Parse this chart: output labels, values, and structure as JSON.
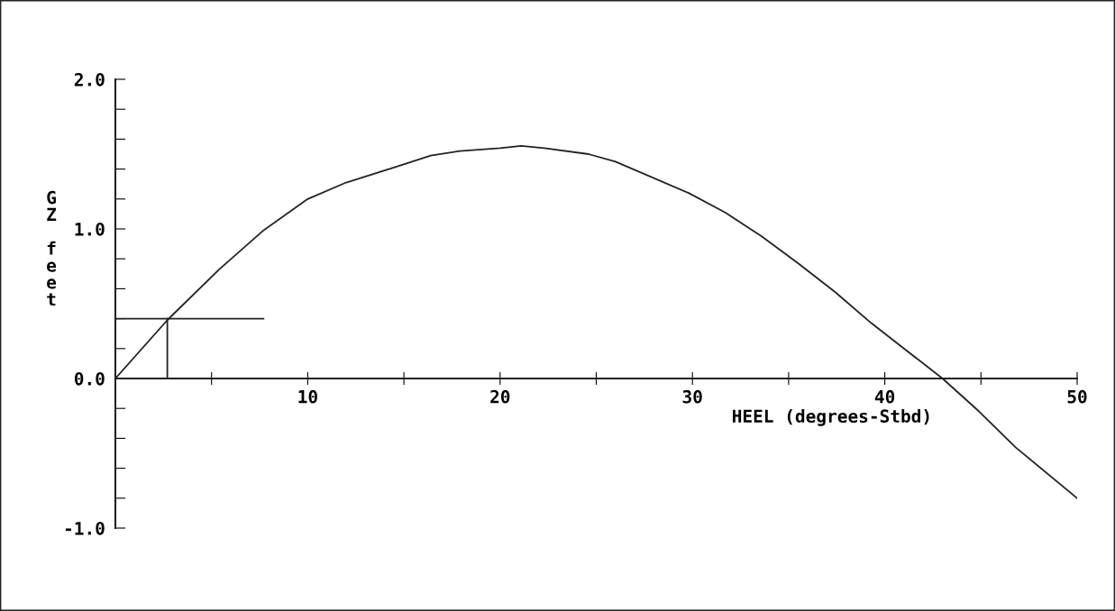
{
  "chart_data": {
    "type": "line",
    "xlabel": "HEEL (degrees-Stbd)",
    "ylabel": "GZ feet",
    "xlim": [
      0,
      50
    ],
    "ylim": [
      -1.0,
      2.0
    ],
    "xticks": [
      {
        "value": 5,
        "label": null
      },
      10,
      {
        "value": 15,
        "label": null
      },
      20,
      {
        "value": 25,
        "label": null
      },
      30,
      {
        "value": 35,
        "label": null
      },
      40,
      {
        "value": 45,
        "label": null
      },
      50
    ],
    "yticks": [
      {
        "value": -1.0,
        "label": "-1.0"
      },
      {
        "value": -0.8,
        "label": null
      },
      {
        "value": -0.6,
        "label": null
      },
      {
        "value": -0.4,
        "label": null
      },
      {
        "value": -0.2,
        "label": null
      },
      {
        "value": 0.0,
        "label": "0.0"
      },
      {
        "value": 0.2,
        "label": null
      },
      {
        "value": 0.4,
        "label": null
      },
      {
        "value": 0.6,
        "label": null
      },
      {
        "value": 0.8,
        "label": null
      },
      {
        "value": 1.0,
        "label": "1.0"
      },
      {
        "value": 1.2,
        "label": null
      },
      {
        "value": 1.4,
        "label": null
      },
      {
        "value": 1.6,
        "label": null
      },
      {
        "value": 1.8,
        "label": null
      },
      {
        "value": 2.0,
        "label": "2.0"
      }
    ],
    "grid": false,
    "marker": "none",
    "line_style": "solid",
    "series": [
      {
        "color": "#222222",
        "x": [
          0,
          2.7,
          5.4,
          7.7,
          10.0,
          12.0,
          14.7,
          16.4,
          17.9,
          20.0,
          21.1,
          22.3,
          24.6,
          26.0,
          29.8,
          31.7,
          33.6,
          35.5,
          37.4,
          39.3,
          41.1,
          43.0,
          44.9,
          46.8,
          50.0
        ],
        "values": [
          0,
          0.39,
          0.73,
          0.99,
          1.2,
          1.31,
          1.42,
          1.49,
          1.52,
          1.54,
          1.555,
          1.54,
          1.5,
          1.45,
          1.24,
          1.11,
          0.95,
          0.77,
          0.58,
          0.37,
          0.19,
          0.0,
          -0.22,
          -0.46,
          -0.8
        ]
      },
      {
        "color": "#222222",
        "x": [
          0,
          7.7
        ],
        "values": [
          0.4,
          0.4
        ]
      },
      {
        "color": "#222222",
        "x": [
          2.7,
          2.7
        ],
        "values": [
          0.0,
          0.4
        ]
      }
    ]
  }
}
